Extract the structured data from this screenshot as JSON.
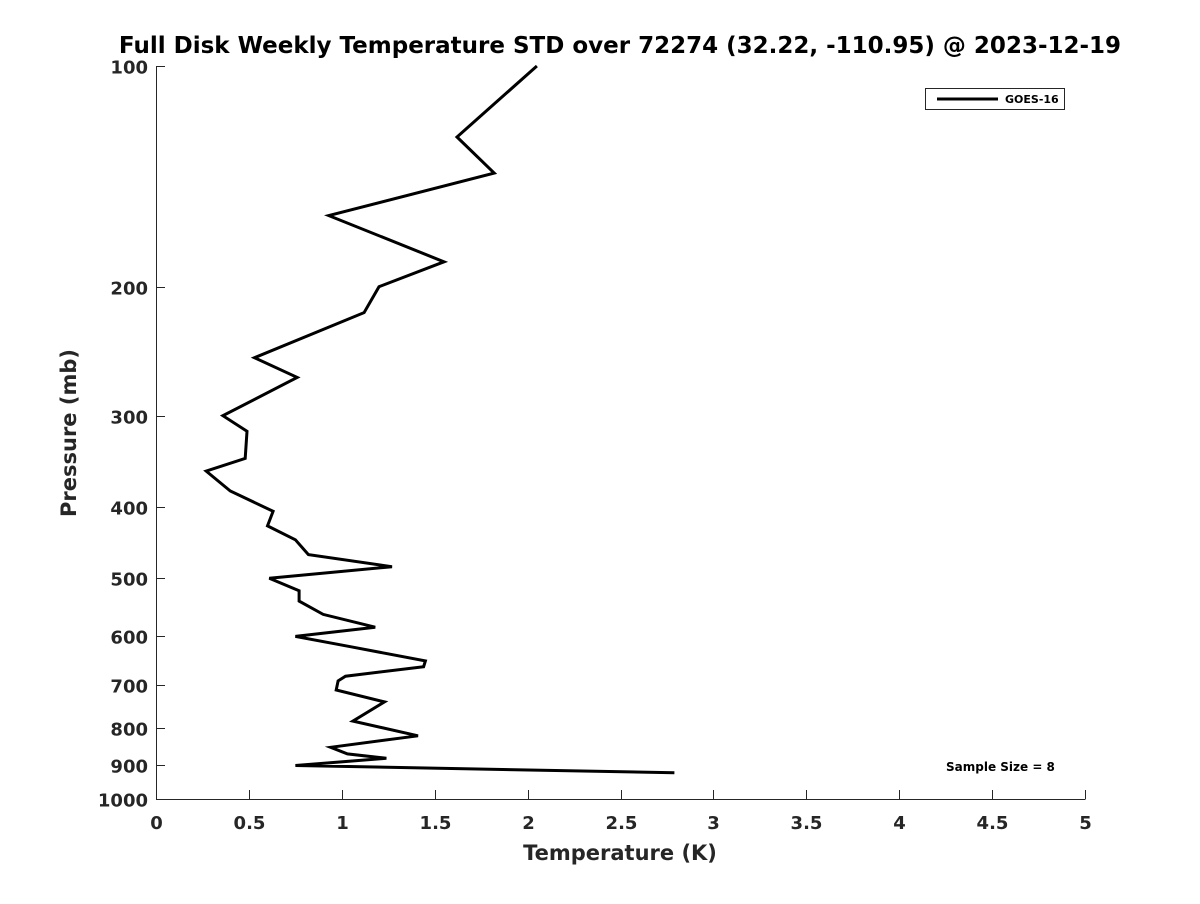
{
  "chart_data": {
    "type": "line",
    "title": "Full Disk Weekly Temperature STD over 72274 (32.22, -110.95) @ 2023-12-19",
    "xlabel": "Temperature (K)",
    "ylabel": "Pressure (mb)",
    "xlim": [
      0,
      5
    ],
    "ylim": [
      100,
      1000
    ],
    "y_scale": "log",
    "y_reversed": true,
    "x_ticks": [
      0,
      0.5,
      1,
      1.5,
      2,
      2.5,
      3,
      3.5,
      4,
      4.5,
      5
    ],
    "x_tick_labels": [
      "0",
      "0.5",
      "1",
      "1.5",
      "2",
      "2.5",
      "3",
      "3.5",
      "4",
      "4.5",
      "5"
    ],
    "y_ticks": [
      100,
      200,
      300,
      400,
      500,
      600,
      700,
      800,
      900,
      1000
    ],
    "y_tick_labels": [
      "100",
      "200",
      "300",
      "400",
      "500",
      "600",
      "700",
      "800",
      "900",
      "1000"
    ],
    "grid": false,
    "legend": {
      "position": "top-right",
      "entries": [
        "GOES-16"
      ]
    },
    "annotation": "Sample Size = 8",
    "series": [
      {
        "name": "GOES-16",
        "color": "#000000",
        "points": [
          {
            "x": 2.05,
            "y": 100
          },
          {
            "x": 1.62,
            "y": 125
          },
          {
            "x": 1.82,
            "y": 140
          },
          {
            "x": 0.93,
            "y": 160
          },
          {
            "x": 1.55,
            "y": 185
          },
          {
            "x": 1.2,
            "y": 200
          },
          {
            "x": 1.12,
            "y": 217
          },
          {
            "x": 0.53,
            "y": 250
          },
          {
            "x": 0.76,
            "y": 266
          },
          {
            "x": 0.36,
            "y": 300
          },
          {
            "x": 0.49,
            "y": 315
          },
          {
            "x": 0.48,
            "y": 343
          },
          {
            "x": 0.27,
            "y": 357
          },
          {
            "x": 0.4,
            "y": 380
          },
          {
            "x": 0.63,
            "y": 405
          },
          {
            "x": 0.6,
            "y": 424
          },
          {
            "x": 0.75,
            "y": 443
          },
          {
            "x": 0.82,
            "y": 464
          },
          {
            "x": 1.27,
            "y": 482
          },
          {
            "x": 0.61,
            "y": 500
          },
          {
            "x": 0.77,
            "y": 520
          },
          {
            "x": 0.77,
            "y": 537
          },
          {
            "x": 0.9,
            "y": 560
          },
          {
            "x": 1.18,
            "y": 583
          },
          {
            "x": 0.75,
            "y": 600
          },
          {
            "x": 1.05,
            "y": 620
          },
          {
            "x": 1.45,
            "y": 648
          },
          {
            "x": 1.44,
            "y": 660
          },
          {
            "x": 1.02,
            "y": 680
          },
          {
            "x": 0.98,
            "y": 690
          },
          {
            "x": 0.97,
            "y": 710
          },
          {
            "x": 1.23,
            "y": 737
          },
          {
            "x": 1.06,
            "y": 783
          },
          {
            "x": 1.41,
            "y": 820
          },
          {
            "x": 0.94,
            "y": 850
          },
          {
            "x": 1.03,
            "y": 868
          },
          {
            "x": 1.24,
            "y": 880
          },
          {
            "x": 0.75,
            "y": 900
          },
          {
            "x": 2.79,
            "y": 921
          }
        ]
      }
    ]
  }
}
